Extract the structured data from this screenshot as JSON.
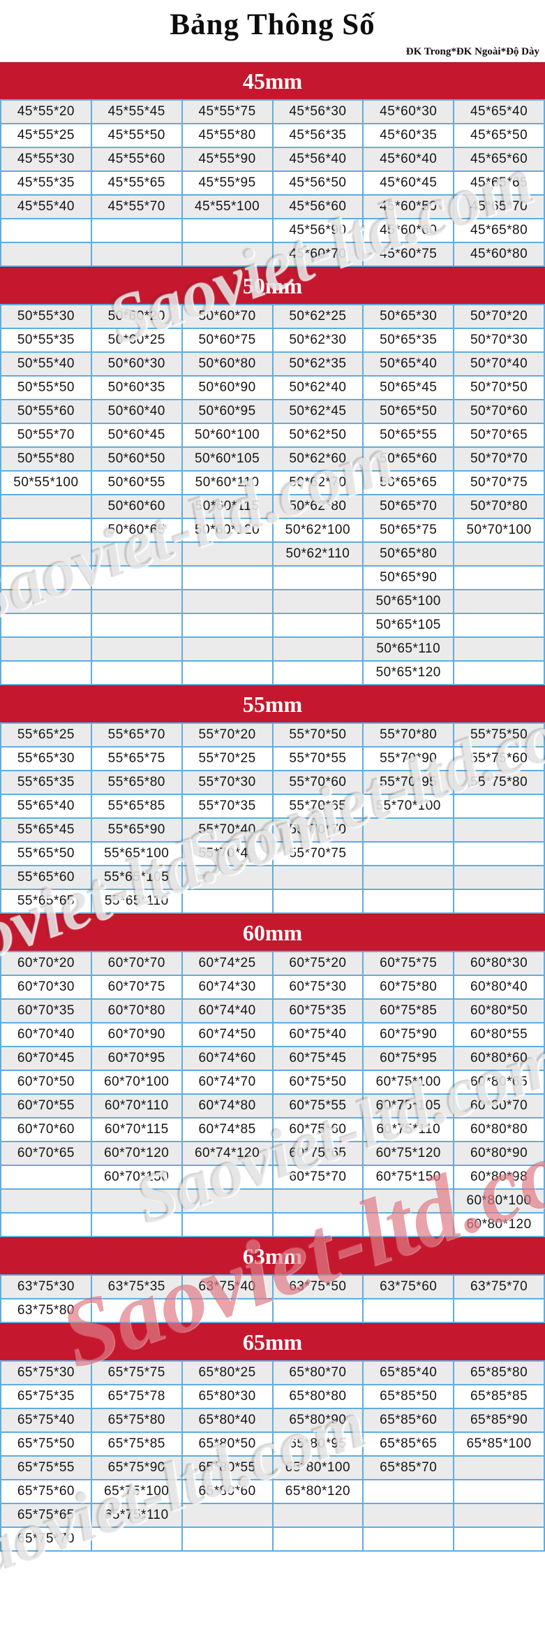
{
  "title": "Bảng Thông Số",
  "subtitle": "ĐK Trong*ĐK Ngoài*Độ Dày",
  "watermark": "Saoviet-ltd.com",
  "colors": {
    "header_bg": "#c5182e",
    "grid_border": "#5fadde",
    "row_alt": "#ebebeb",
    "row": "#ffffff",
    "header_text": "#ffffff",
    "cell_text": "#141414"
  },
  "sections": [
    {
      "label": "45mm",
      "rows": [
        [
          "45*55*20",
          "45*55*45",
          "45*55*75",
          "45*56*30",
          "45*60*30",
          "45*65*40"
        ],
        [
          "45*55*25",
          "45*55*50",
          "45*55*80",
          "45*56*35",
          "45*60*35",
          "45*65*50"
        ],
        [
          "45*55*30",
          "45*55*60",
          "45*55*90",
          "45*56*40",
          "45*60*40",
          "45*65*60"
        ],
        [
          "45*55*35",
          "45*55*65",
          "45*55*95",
          "45*56*50",
          "45*60*45",
          "45*65*65"
        ],
        [
          "45*55*40",
          "45*55*70",
          "45*55*100",
          "45*56*60",
          "45*60*50",
          "45*65*70"
        ],
        [
          "",
          "",
          "",
          "45*56*90",
          "45*60*60",
          "45*65*80"
        ],
        [
          "",
          "",
          "",
          "45*60*70",
          "45*60*75",
          "45*60*80"
        ]
      ]
    },
    {
      "label": "50mm",
      "rows": [
        [
          "50*55*30",
          "50*60*20",
          "50*60*70",
          "50*62*25",
          "50*65*30",
          "50*70*20"
        ],
        [
          "50*55*35",
          "50*60*25",
          "50*60*75",
          "50*62*30",
          "50*65*35",
          "50*70*30"
        ],
        [
          "50*55*40",
          "50*60*30",
          "50*60*80",
          "50*62*35",
          "50*65*40",
          "50*70*40"
        ],
        [
          "50*55*50",
          "50*60*35",
          "50*60*90",
          "50*62*40",
          "50*65*45",
          "50*70*50"
        ],
        [
          "50*55*60",
          "50*60*40",
          "50*60*95",
          "50*62*45",
          "50*65*50",
          "50*70*60"
        ],
        [
          "50*55*70",
          "50*60*45",
          "50*60*100",
          "50*62*50",
          "50*65*55",
          "50*70*65"
        ],
        [
          "50*55*80",
          "50*60*50",
          "50*60*105",
          "50*62*60",
          "50*65*60",
          "50*70*70"
        ],
        [
          "50*55*100",
          "50*60*55",
          "50*60*110",
          "50*62*70",
          "50*65*65",
          "50*70*75"
        ],
        [
          "",
          "50*60*60",
          "50*60*115",
          "50*62*80",
          "50*65*70",
          "50*70*80"
        ],
        [
          "",
          "50*60*65",
          "50*60*120",
          "50*62*100",
          "50*65*75",
          "50*70*100"
        ],
        [
          "",
          "",
          "",
          "50*62*110",
          "50*65*80",
          ""
        ],
        [
          "",
          "",
          "",
          "",
          "50*65*90",
          ""
        ],
        [
          "",
          "",
          "",
          "",
          "50*65*100",
          ""
        ],
        [
          "",
          "",
          "",
          "",
          "50*65*105",
          ""
        ],
        [
          "",
          "",
          "",
          "",
          "50*65*110",
          ""
        ],
        [
          "",
          "",
          "",
          "",
          "50*65*120",
          ""
        ]
      ]
    },
    {
      "label": "55mm",
      "rows": [
        [
          "55*65*25",
          "55*65*70",
          "55*70*20",
          "55*70*50",
          "55*70*80",
          "55*75*50"
        ],
        [
          "55*65*30",
          "55*65*75",
          "55*70*25",
          "55*70*55",
          "55*70*90",
          "55*75*60"
        ],
        [
          "55*65*35",
          "55*65*80",
          "55*70*30",
          "55*70*60",
          "55*70*95",
          "55*75*80"
        ],
        [
          "55*65*40",
          "55*65*85",
          "55*70*35",
          "55*70*65",
          "55*70*100",
          ""
        ],
        [
          "55*65*45",
          "55*65*90",
          "55*70*40",
          "55*70*70",
          "",
          ""
        ],
        [
          "55*65*50",
          "55*65*100",
          "55*70*45",
          "55*70*75",
          "",
          ""
        ],
        [
          "55*65*60",
          "55*65*105",
          "",
          "",
          "",
          ""
        ],
        [
          "55*65*65",
          "55*65*110",
          "",
          "",
          "",
          ""
        ]
      ]
    },
    {
      "label": "60mm",
      "rows": [
        [
          "60*70*20",
          "60*70*70",
          "60*74*25",
          "60*75*20",
          "60*75*75",
          "60*80*30"
        ],
        [
          "60*70*30",
          "60*70*75",
          "60*74*30",
          "60*75*30",
          "60*75*80",
          "60*80*40"
        ],
        [
          "60*70*35",
          "60*70*80",
          "60*74*40",
          "60*75*35",
          "60*75*85",
          "60*80*50"
        ],
        [
          "60*70*40",
          "60*70*90",
          "60*74*50",
          "60*75*40",
          "60*75*90",
          "60*80*55"
        ],
        [
          "60*70*45",
          "60*70*95",
          "60*74*60",
          "60*75*45",
          "60*75*95",
          "60*80*60"
        ],
        [
          "60*70*50",
          "60*70*100",
          "60*74*70",
          "60*75*50",
          "60*75*100",
          "60*80*65"
        ],
        [
          "60*70*55",
          "60*70*110",
          "60*74*80",
          "60*75*55",
          "60*75*105",
          "60*80*70"
        ],
        [
          "60*70*60",
          "60*70*115",
          "60*74*85",
          "60*75*60",
          "60*75*110",
          "60*80*80"
        ],
        [
          "60*70*65",
          "60*70*120",
          "60*74*120",
          "60*75*65",
          "60*75*120",
          "60*80*90"
        ],
        [
          "",
          "60*70*150",
          "",
          "60*75*70",
          "60*75*150",
          "60*80*98"
        ],
        [
          "",
          "",
          "",
          "",
          "",
          "60*80*100"
        ],
        [
          "",
          "",
          "",
          "",
          "",
          "60*80*120"
        ]
      ]
    },
    {
      "label": "63mm",
      "rows": [
        [
          "63*75*30",
          "63*75*35",
          "63*75*40",
          "63*75*50",
          "63*75*60",
          "63*75*70"
        ],
        [
          "63*75*80",
          "",
          "",
          "",
          "",
          ""
        ]
      ]
    },
    {
      "label": "65mm",
      "rows": [
        [
          "65*75*30",
          "65*75*75",
          "65*80*25",
          "65*80*70",
          "65*85*40",
          "65*85*80"
        ],
        [
          "65*75*35",
          "65*75*78",
          "65*80*30",
          "65*80*80",
          "65*85*50",
          "65*85*85"
        ],
        [
          "65*75*40",
          "65*75*80",
          "65*80*40",
          "65*80*90",
          "65*85*60",
          "65*85*90"
        ],
        [
          "65*75*50",
          "65*75*85",
          "65*80*50",
          "65*80*95",
          "65*85*65",
          "65*85*100"
        ],
        [
          "65*75*55",
          "65*75*90",
          "65*80*55",
          "65*80*100",
          "65*85*70",
          ""
        ],
        [
          "65*75*60",
          "65*75*100",
          "65*80*60",
          "65*80*120",
          "",
          ""
        ],
        [
          "65*75*65",
          "65*75*110",
          "",
          "",
          "",
          ""
        ],
        [
          "65*75*70",
          "",
          "",
          "",
          "",
          ""
        ]
      ]
    }
  ]
}
